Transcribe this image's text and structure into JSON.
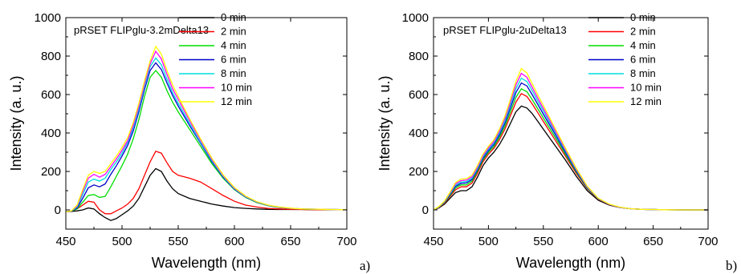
{
  "chart_data": [
    {
      "type": "line",
      "title": "pRSET FLIPglu-3.2mDelta13",
      "xlabel": "Wavelength (nm)",
      "ylabel": "Intensity (a. u.)",
      "panel_label": "a)",
      "xlim": [
        450,
        700
      ],
      "ylim": [
        -100,
        1000
      ],
      "xticks": [
        450,
        500,
        550,
        600,
        650,
        700
      ],
      "yticks": [
        0,
        200,
        400,
        600,
        800,
        1000
      ],
      "grid": false,
      "legend_position": "top-right",
      "x": [
        450,
        455,
        460,
        465,
        470,
        475,
        480,
        485,
        490,
        495,
        500,
        505,
        510,
        515,
        520,
        525,
        530,
        535,
        540,
        545,
        550,
        560,
        570,
        580,
        590,
        600,
        610,
        620,
        630,
        640,
        650,
        660,
        680,
        700
      ],
      "series": [
        {
          "name": "0 min",
          "color": "#000000",
          "values": [
            -10,
            -8,
            -5,
            0,
            10,
            5,
            -20,
            -40,
            -55,
            -45,
            -25,
            -5,
            20,
            60,
            120,
            180,
            215,
            200,
            150,
            110,
            85,
            60,
            45,
            30,
            20,
            12,
            8,
            5,
            3,
            2,
            2,
            2,
            1,
            1
          ]
        },
        {
          "name": "2 min",
          "color": "#ff0000",
          "values": [
            -10,
            -5,
            5,
            25,
            45,
            40,
            0,
            -20,
            -20,
            -5,
            10,
            30,
            60,
            110,
            180,
            250,
            305,
            295,
            245,
            200,
            180,
            165,
            145,
            110,
            75,
            45,
            25,
            15,
            8,
            5,
            3,
            2,
            1,
            1
          ]
        },
        {
          "name": "4 min",
          "color": "#00dd00",
          "values": [
            -10,
            -5,
            5,
            40,
            75,
            80,
            65,
            70,
            120,
            175,
            230,
            290,
            370,
            470,
            590,
            690,
            725,
            690,
            620,
            560,
            510,
            420,
            330,
            240,
            165,
            105,
            65,
            38,
            22,
            12,
            7,
            4,
            2,
            1
          ]
        },
        {
          "name": "6 min",
          "color": "#0000cc",
          "values": [
            -10,
            -5,
            10,
            60,
            115,
            130,
            120,
            135,
            185,
            230,
            280,
            335,
            410,
            510,
            625,
            725,
            765,
            730,
            660,
            595,
            540,
            440,
            345,
            250,
            170,
            108,
            67,
            40,
            23,
            13,
            8,
            5,
            3,
            1
          ]
        },
        {
          "name": "8 min",
          "color": "#00dddd",
          "values": [
            -10,
            -5,
            15,
            80,
            145,
            160,
            150,
            165,
            210,
            250,
            295,
            350,
            425,
            525,
            640,
            745,
            790,
            755,
            680,
            610,
            555,
            450,
            350,
            255,
            173,
            110,
            68,
            41,
            24,
            14,
            8,
            5,
            3,
            1
          ]
        },
        {
          "name": "10 min",
          "color": "#ff00ff",
          "values": [
            -10,
            -5,
            20,
            95,
            165,
            185,
            170,
            185,
            225,
            265,
            310,
            360,
            440,
            540,
            655,
            760,
            825,
            785,
            705,
            630,
            575,
            465,
            360,
            262,
            178,
            113,
            70,
            42,
            25,
            14,
            8,
            5,
            3,
            1
          ]
        },
        {
          "name": "12 min",
          "color": "#ffff00",
          "values": [
            -10,
            -5,
            25,
            105,
            180,
            200,
            190,
            200,
            240,
            280,
            325,
            375,
            455,
            555,
            670,
            775,
            850,
            810,
            725,
            650,
            590,
            475,
            368,
            268,
            182,
            116,
            72,
            43,
            25,
            15,
            9,
            5,
            3,
            1
          ]
        }
      ]
    },
    {
      "type": "line",
      "title": "pRSET FLIPglu-2uDelta13",
      "xlabel": "Wavelength (nm)",
      "ylabel": "Intensity (a. u.)",
      "panel_label": "b)",
      "xlim": [
        450,
        700
      ],
      "ylim": [
        -100,
        1000
      ],
      "xticks": [
        450,
        500,
        550,
        600,
        650,
        700
      ],
      "yticks": [
        0,
        200,
        400,
        600,
        800,
        1000
      ],
      "grid": false,
      "legend_position": "top-right",
      "x": [
        450,
        455,
        460,
        465,
        470,
        475,
        480,
        485,
        490,
        495,
        500,
        505,
        510,
        515,
        520,
        525,
        530,
        535,
        540,
        545,
        550,
        560,
        570,
        580,
        590,
        600,
        610,
        620,
        630,
        640,
        650,
        660,
        680,
        700
      ],
      "series": [
        {
          "name": "0 min",
          "color": "#000000",
          "values": [
            0,
            10,
            30,
            60,
            90,
            100,
            100,
            120,
            170,
            230,
            270,
            300,
            340,
            390,
            450,
            510,
            540,
            530,
            500,
            460,
            420,
            340,
            260,
            175,
            100,
            50,
            25,
            12,
            6,
            3,
            2,
            1,
            0,
            0
          ]
        },
        {
          "name": "2 min",
          "color": "#ff0000",
          "values": [
            0,
            12,
            35,
            70,
            105,
            120,
            120,
            140,
            190,
            250,
            290,
            320,
            365,
            420,
            490,
            560,
            605,
            590,
            550,
            505,
            460,
            370,
            280,
            190,
            110,
            55,
            27,
            13,
            6,
            3,
            2,
            1,
            0,
            0
          ]
        },
        {
          "name": "4 min",
          "color": "#00dd00",
          "values": [
            0,
            14,
            38,
            75,
            115,
            130,
            130,
            150,
            200,
            260,
            300,
            330,
            378,
            435,
            510,
            585,
            630,
            615,
            572,
            525,
            478,
            385,
            290,
            197,
            113,
            57,
            28,
            13,
            6,
            3,
            2,
            1,
            0,
            0
          ]
        },
        {
          "name": "6 min",
          "color": "#0000cc",
          "values": [
            0,
            15,
            40,
            80,
            122,
            138,
            140,
            158,
            208,
            268,
            308,
            340,
            390,
            450,
            530,
            610,
            660,
            645,
            598,
            548,
            498,
            400,
            300,
            203,
            116,
            58,
            28,
            13,
            6,
            3,
            2,
            1,
            0,
            0
          ]
        },
        {
          "name": "8 min",
          "color": "#00dddd",
          "values": [
            0,
            16,
            42,
            84,
            128,
            145,
            147,
            165,
            215,
            275,
            315,
            348,
            400,
            462,
            545,
            630,
            685,
            668,
            618,
            565,
            514,
            410,
            308,
            208,
            118,
            59,
            29,
            13,
            6,
            3,
            2,
            1,
            0,
            0
          ]
        },
        {
          "name": "10 min",
          "color": "#ff00ff",
          "values": [
            0,
            17,
            44,
            88,
            135,
            152,
            155,
            172,
            222,
            282,
            322,
            356,
            410,
            475,
            560,
            650,
            710,
            690,
            636,
            580,
            528,
            420,
            315,
            212,
            120,
            60,
            29,
            13,
            6,
            3,
            2,
            1,
            0,
            0
          ]
        },
        {
          "name": "12 min",
          "color": "#ffff00",
          "values": [
            0,
            18,
            46,
            92,
            142,
            160,
            163,
            180,
            230,
            290,
            330,
            364,
            420,
            487,
            575,
            668,
            735,
            712,
            655,
            597,
            543,
            432,
            322,
            217,
            123,
            61,
            30,
            14,
            6,
            3,
            2,
            1,
            0,
            0
          ]
        }
      ]
    }
  ]
}
